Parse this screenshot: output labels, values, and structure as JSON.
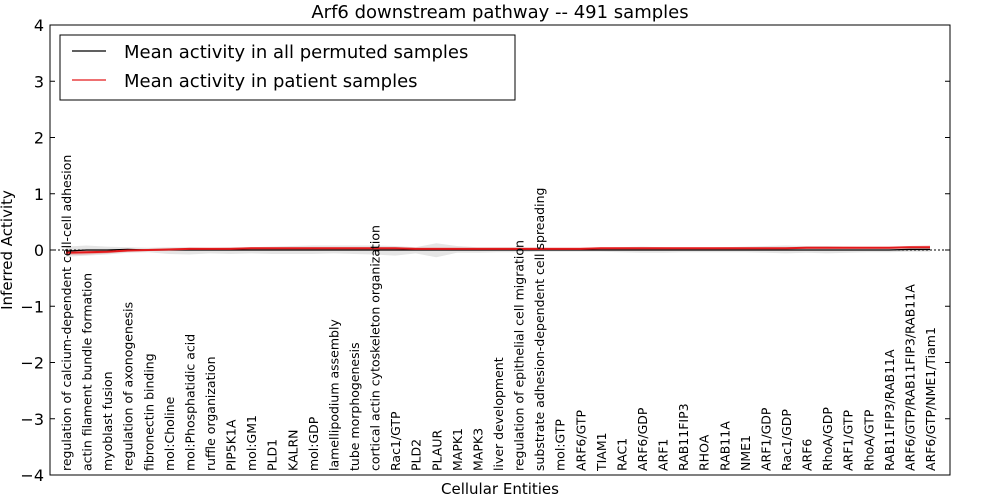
{
  "chart_data": {
    "type": "line",
    "title": "Arf6 downstream pathway -- 491 samples",
    "xlabel": "Cellular Entities",
    "ylabel": "Inferred Activity",
    "ylim": [
      -4,
      4
    ],
    "yticks": [
      "−4",
      "−3",
      "−2",
      "−1",
      "0",
      "1",
      "2",
      "3",
      "4"
    ],
    "grid": false,
    "legend_position": "top-left",
    "categories": [
      "regulation of calcium-dependent cell-cell adhesion",
      "actin filament bundle formation",
      "myoblast fusion",
      "regulation of axonogenesis",
      "fibronectin binding",
      "mol:Choline",
      "mol:Phosphatidic acid",
      "ruffle organization",
      "PIP5K1A",
      "mol:GM1",
      "PLD1",
      "KALRN",
      "mol:GDP",
      "lamellipodium assembly",
      "tube morphogenesis",
      "cortical actin cytoskeleton organization",
      "Rac1/GTP",
      "PLD2",
      "PLAUR",
      "MAPK1",
      "MAPK3",
      "liver development",
      "regulation of epithelial cell migration",
      "substrate adhesion-dependent cell spreading",
      "mol:GTP",
      "ARF6/GTP",
      "TIAM1",
      "RAC1",
      "ARF6/GDP",
      "ARF1",
      "RAB11FIP3",
      "RHOA",
      "RAB11A",
      "NME1",
      "ARF1/GDP",
      "Rac1/GDP",
      "ARF6",
      "RhoA/GDP",
      "ARF1/GTP",
      "RhoA/GTP",
      "RAB11FIP3/RAB11A",
      "ARF6/GTP/RAB11FIP3/RAB11A",
      "ARF6/GTP/NME1/Tiam1"
    ],
    "series": [
      {
        "name": "Mean activity in all permuted samples",
        "color": "#000000",
        "values": [
          -0.02,
          0.0,
          0.0,
          0.01,
          0.0,
          0.0,
          0.0,
          0.0,
          0.0,
          0.0,
          0.0,
          0.0,
          0.0,
          0.0,
          0.0,
          0.0,
          0.0,
          0.0,
          0.0,
          0.0,
          0.0,
          0.0,
          0.0,
          0.0,
          0.0,
          0.0,
          0.0,
          0.0,
          0.0,
          0.0,
          0.0,
          0.0,
          0.0,
          0.0,
          0.0,
          0.0,
          0.0,
          0.0,
          0.0,
          0.0,
          0.0,
          0.01,
          0.01
        ],
        "band_low": [
          -0.12,
          -0.1,
          -0.08,
          -0.05,
          -0.04,
          -0.07,
          -0.08,
          -0.06,
          -0.07,
          -0.06,
          -0.07,
          -0.07,
          -0.07,
          -0.06,
          -0.07,
          -0.08,
          -0.1,
          -0.06,
          -0.13,
          -0.05,
          -0.05,
          -0.04,
          -0.04,
          -0.03,
          -0.03,
          -0.03,
          -0.03,
          -0.04,
          -0.05,
          -0.05,
          -0.04,
          -0.04,
          -0.04,
          -0.04,
          -0.05,
          -0.06,
          -0.05,
          -0.06,
          -0.05,
          -0.04,
          -0.04,
          -0.03,
          -0.03
        ],
        "band_high": [
          0.06,
          0.08,
          0.06,
          0.05,
          0.04,
          0.05,
          0.05,
          0.04,
          0.05,
          0.05,
          0.06,
          0.07,
          0.08,
          0.08,
          0.08,
          0.08,
          0.07,
          0.05,
          0.12,
          0.07,
          0.05,
          0.05,
          0.05,
          0.04,
          0.04,
          0.04,
          0.04,
          0.05,
          0.06,
          0.05,
          0.04,
          0.04,
          0.05,
          0.06,
          0.07,
          0.08,
          0.07,
          0.07,
          0.06,
          0.05,
          0.05,
          0.05,
          0.05
        ]
      },
      {
        "name": "Mean activity in patient samples",
        "color": "#e41a1c",
        "values": [
          -0.05,
          -0.04,
          -0.03,
          -0.01,
          0.0,
          0.01,
          0.02,
          0.02,
          0.02,
          0.03,
          0.03,
          0.03,
          0.03,
          0.03,
          0.03,
          0.03,
          0.03,
          0.02,
          0.02,
          0.02,
          0.02,
          0.02,
          0.02,
          0.02,
          0.02,
          0.02,
          0.03,
          0.03,
          0.03,
          0.03,
          0.03,
          0.03,
          0.03,
          0.03,
          0.03,
          0.03,
          0.04,
          0.04,
          0.04,
          0.04,
          0.04,
          0.05,
          0.05
        ],
        "band_low": [
          -0.09,
          -0.08,
          -0.06,
          -0.03,
          -0.02,
          -0.01,
          0.0,
          0.0,
          0.0,
          0.01,
          0.01,
          0.01,
          0.01,
          0.01,
          0.01,
          0.01,
          0.01,
          0.0,
          0.0,
          0.0,
          0.0,
          0.0,
          0.0,
          0.0,
          0.0,
          0.0,
          0.01,
          0.01,
          0.01,
          0.01,
          0.01,
          0.01,
          0.01,
          0.01,
          0.01,
          0.01,
          0.02,
          0.02,
          0.02,
          0.02,
          0.02,
          0.03,
          0.03
        ],
        "band_high": [
          -0.01,
          0.0,
          0.0,
          0.01,
          0.02,
          0.03,
          0.04,
          0.04,
          0.04,
          0.05,
          0.05,
          0.05,
          0.05,
          0.05,
          0.05,
          0.05,
          0.05,
          0.04,
          0.04,
          0.04,
          0.04,
          0.04,
          0.04,
          0.04,
          0.04,
          0.04,
          0.05,
          0.05,
          0.05,
          0.05,
          0.05,
          0.05,
          0.05,
          0.05,
          0.05,
          0.05,
          0.06,
          0.06,
          0.06,
          0.06,
          0.06,
          0.07,
          0.08
        ]
      }
    ]
  }
}
